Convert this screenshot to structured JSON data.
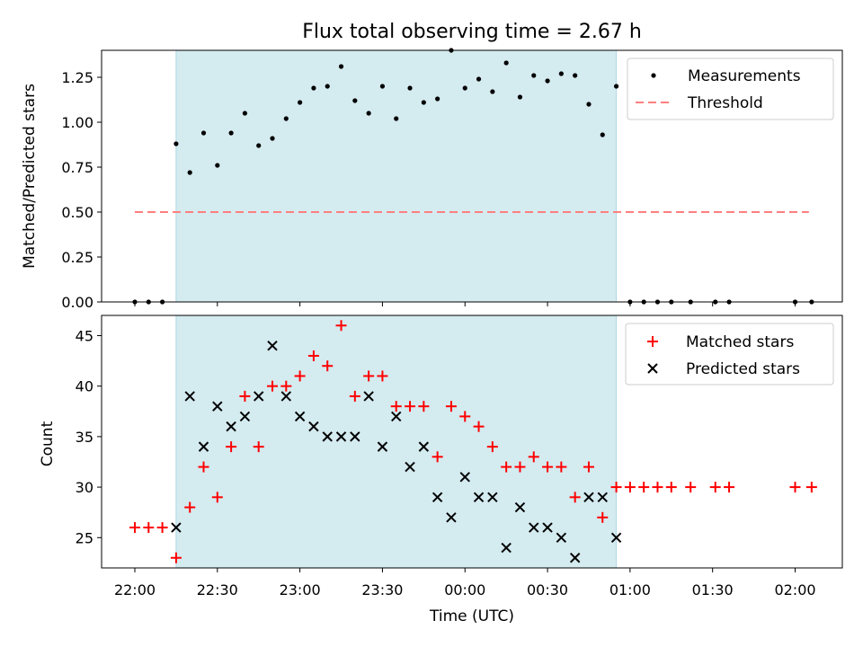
{
  "chart_data": [
    {
      "type": "scatter",
      "title": "Flux total observing time = 2.67 h",
      "ylabel": "Matched/Predicted stars",
      "xlabel": "",
      "ylim": [
        0,
        1.4
      ],
      "yticks": [
        "0.00",
        "0.25",
        "0.50",
        "0.75",
        "1.00",
        "1.25"
      ],
      "shaded_span": [
        "22:15",
        "00:55"
      ],
      "legend": {
        "placement": "top-right",
        "entries": [
          "Measurements",
          "Threshold"
        ]
      },
      "threshold": {
        "name": "Threshold",
        "value": 0.5,
        "x_start": "22:00",
        "x_end": "02:05",
        "color": "#ff7f7f"
      },
      "series": [
        {
          "name": "Measurements",
          "color": "#000000",
          "points": [
            [
              "22:00",
              0
            ],
            [
              "22:05",
              0
            ],
            [
              "22:10",
              0
            ],
            [
              "22:15",
              0.88
            ],
            [
              "22:20",
              0.72
            ],
            [
              "22:25",
              0.94
            ],
            [
              "22:30",
              0.76
            ],
            [
              "22:35",
              0.94
            ],
            [
              "22:40",
              1.05
            ],
            [
              "22:45",
              0.87
            ],
            [
              "22:50",
              0.91
            ],
            [
              "22:55",
              1.02
            ],
            [
              "23:00",
              1.11
            ],
            [
              "23:05",
              1.19
            ],
            [
              "23:10",
              1.2
            ],
            [
              "23:15",
              1.31
            ],
            [
              "23:20",
              1.12
            ],
            [
              "23:25",
              1.05
            ],
            [
              "23:30",
              1.2
            ],
            [
              "23:35",
              1.02
            ],
            [
              "23:40",
              1.19
            ],
            [
              "23:45",
              1.11
            ],
            [
              "23:50",
              1.13
            ],
            [
              "23:55",
              1.4
            ],
            [
              "00:00",
              1.19
            ],
            [
              "00:05",
              1.24
            ],
            [
              "00:10",
              1.17
            ],
            [
              "00:15",
              1.33
            ],
            [
              "00:20",
              1.14
            ],
            [
              "00:25",
              1.26
            ],
            [
              "00:30",
              1.23
            ],
            [
              "00:35",
              1.27
            ],
            [
              "00:40",
              1.26
            ],
            [
              "00:45",
              1.1
            ],
            [
              "00:50",
              0.93
            ],
            [
              "00:55",
              1.2
            ],
            [
              "01:00",
              0
            ],
            [
              "01:05",
              0
            ],
            [
              "01:10",
              0
            ],
            [
              "01:15",
              0
            ],
            [
              "01:22",
              0
            ],
            [
              "01:31",
              0
            ],
            [
              "01:36",
              0
            ],
            [
              "02:00",
              0
            ],
            [
              "02:06",
              0
            ]
          ]
        }
      ]
    },
    {
      "type": "scatter",
      "title": "",
      "ylabel": "Count",
      "xlabel": "Time (UTC)",
      "ylim": [
        22,
        47
      ],
      "yticks": [
        "25",
        "30",
        "35",
        "40",
        "45"
      ],
      "xticks": [
        "22:00",
        "22:30",
        "23:00",
        "23:30",
        "00:00",
        "00:30",
        "01:00",
        "01:30",
        "02:00"
      ],
      "shaded_span": [
        "22:15",
        "00:55"
      ],
      "legend": {
        "placement": "top-right",
        "entries": [
          "Matched stars",
          "Predicted stars"
        ]
      },
      "series": [
        {
          "name": "Matched stars",
          "marker": "plus",
          "color": "#ff0000",
          "points": [
            [
              "22:00",
              26
            ],
            [
              "22:05",
              26
            ],
            [
              "22:10",
              26
            ],
            [
              "22:15",
              23
            ],
            [
              "22:20",
              28
            ],
            [
              "22:25",
              32
            ],
            [
              "22:30",
              29
            ],
            [
              "22:35",
              34
            ],
            [
              "22:40",
              39
            ],
            [
              "22:45",
              34
            ],
            [
              "22:50",
              40
            ],
            [
              "22:55",
              40
            ],
            [
              "23:00",
              41
            ],
            [
              "23:05",
              43
            ],
            [
              "23:10",
              42
            ],
            [
              "23:15",
              46
            ],
            [
              "23:20",
              39
            ],
            [
              "23:25",
              41
            ],
            [
              "23:30",
              41
            ],
            [
              "23:35",
              38
            ],
            [
              "23:40",
              38
            ],
            [
              "23:45",
              38
            ],
            [
              "23:50",
              33
            ],
            [
              "23:55",
              38
            ],
            [
              "00:00",
              37
            ],
            [
              "00:05",
              36
            ],
            [
              "00:10",
              34
            ],
            [
              "00:15",
              32
            ],
            [
              "00:20",
              32
            ],
            [
              "00:25",
              33
            ],
            [
              "00:30",
              32
            ],
            [
              "00:35",
              32
            ],
            [
              "00:40",
              29
            ],
            [
              "00:45",
              32
            ],
            [
              "00:50",
              27
            ],
            [
              "00:55",
              30
            ],
            [
              "01:00",
              30
            ],
            [
              "01:05",
              30
            ],
            [
              "01:10",
              30
            ],
            [
              "01:15",
              30
            ],
            [
              "01:22",
              30
            ],
            [
              "01:31",
              30
            ],
            [
              "01:36",
              30
            ],
            [
              "02:00",
              30
            ],
            [
              "02:06",
              30
            ]
          ]
        },
        {
          "name": "Predicted stars",
          "marker": "x",
          "color": "#000000",
          "points": [
            [
              "22:15",
              26
            ],
            [
              "22:20",
              39
            ],
            [
              "22:25",
              34
            ],
            [
              "22:30",
              38
            ],
            [
              "22:35",
              36
            ],
            [
              "22:40",
              37
            ],
            [
              "22:45",
              39
            ],
            [
              "22:50",
              44
            ],
            [
              "22:55",
              39
            ],
            [
              "23:00",
              37
            ],
            [
              "23:05",
              36
            ],
            [
              "23:10",
              35
            ],
            [
              "23:15",
              35
            ],
            [
              "23:20",
              35
            ],
            [
              "23:25",
              39
            ],
            [
              "23:30",
              34
            ],
            [
              "23:35",
              37
            ],
            [
              "23:40",
              32
            ],
            [
              "23:45",
              34
            ],
            [
              "23:50",
              29
            ],
            [
              "23:55",
              27
            ],
            [
              "00:00",
              31
            ],
            [
              "00:05",
              29
            ],
            [
              "00:10",
              29
            ],
            [
              "00:15",
              24
            ],
            [
              "00:20",
              28
            ],
            [
              "00:25",
              26
            ],
            [
              "00:30",
              26
            ],
            [
              "00:35",
              25
            ],
            [
              "00:40",
              23
            ],
            [
              "00:45",
              29
            ],
            [
              "00:50",
              29
            ],
            [
              "00:55",
              25
            ]
          ]
        }
      ]
    }
  ],
  "colors": {
    "span": "#d4ebf0",
    "span_edge": "#add8e6",
    "threshold": "#ff7f7f",
    "matched": "#ff0000",
    "predicted": "#000000",
    "measurement": "#000000"
  }
}
